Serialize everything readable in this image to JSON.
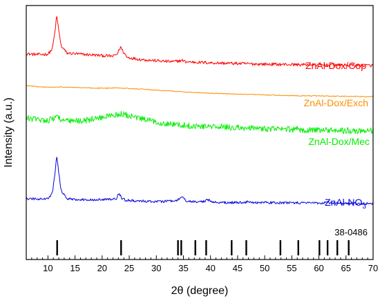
{
  "chart_data": {
    "type": "line",
    "xlabel": "2θ (degree)",
    "ylabel": "Intensity (a.u.)",
    "xlim": [
      6,
      70
    ],
    "x_ticks": [
      10,
      15,
      20,
      25,
      30,
      35,
      40,
      45,
      50,
      55,
      60,
      65,
      70
    ],
    "grid": false,
    "series": [
      {
        "name": "ZnAl-Dox/Cop",
        "label_main": "ZnAl-Dox/Cop",
        "color": "#ff0000",
        "noise": 2.2,
        "x": [
          6,
          8,
          10,
          10.8,
          11.3,
          11.6,
          11.9,
          12.4,
          13.5,
          16,
          18,
          20,
          22,
          22.8,
          23.4,
          23.9,
          24.6,
          27,
          30,
          33,
          34.8,
          35.4,
          40,
          45,
          50,
          55,
          60,
          65,
          70
        ],
        "y": [
          20,
          19,
          19.5,
          27,
          52,
          75,
          60,
          32,
          21,
          19.5,
          18.5,
          17.5,
          16.5,
          20,
          30,
          23,
          15,
          12,
          10,
          8.5,
          10.5,
          8.5,
          7,
          6,
          5,
          4.5,
          4,
          3.5,
          3
        ]
      },
      {
        "name": "ZnAl-Dox/Exch",
        "label_main": "ZnAl-Dox/Exch",
        "color": "#ff8c00",
        "noise": 0.6,
        "x": [
          6,
          8,
          10,
          12,
          15,
          18,
          21,
          23,
          25,
          28,
          32,
          36,
          40,
          45,
          50,
          55,
          60,
          65,
          70
        ],
        "y": [
          21,
          19.5,
          18.5,
          18.8,
          18.3,
          17.5,
          17.2,
          17.8,
          16.8,
          15.5,
          13.5,
          11.5,
          10,
          8.5,
          7.5,
          6.5,
          6,
          5.5,
          5
        ]
      },
      {
        "name": "ZnAl-Dox/Mec",
        "label_main": "ZnAl-Dox/Mec",
        "color": "#00ee00",
        "noise": 4.5,
        "x": [
          6,
          8,
          10,
          11,
          11.7,
          12.5,
          14,
          16,
          18,
          20,
          22,
          23.5,
          25,
          27,
          30,
          33,
          36,
          40,
          45,
          50,
          55,
          60,
          65,
          70
        ],
        "y": [
          22,
          20,
          19,
          21,
          26,
          19,
          17,
          18,
          20,
          23,
          26,
          28,
          25,
          21,
          16,
          13,
          11,
          9.5,
          8,
          6.5,
          5.5,
          4.5,
          4,
          3.5
        ]
      },
      {
        "name": "ZnAl-NO3",
        "label_main": "ZnAl-NO",
        "label_sub": "3",
        "color": "#0000dd",
        "noise": 1.8,
        "x": [
          6,
          8,
          10,
          10.8,
          11.3,
          11.6,
          11.9,
          12.4,
          13.5,
          16,
          20,
          22.6,
          23.1,
          23.6,
          24.3,
          27,
          31,
          33.8,
          34.7,
          35.5,
          37,
          38.8,
          39.4,
          40.3,
          42,
          46.5,
          47,
          48,
          55,
          60.8,
          61.5,
          62,
          65,
          70
        ],
        "y": [
          10,
          9.5,
          10,
          18,
          45,
          73,
          55,
          22,
          10,
          9,
          8.5,
          10,
          18,
          11,
          8,
          6.5,
          6,
          7,
          13,
          7,
          5.5,
          6,
          9,
          5.5,
          4.5,
          4.5,
          6.5,
          4.5,
          4,
          4,
          6,
          4,
          3.5,
          3
        ]
      }
    ],
    "reference": {
      "label": "38-0486",
      "color": "#000000",
      "positions": [
        11.7,
        23.5,
        34.0,
        34.6,
        37.2,
        39.2,
        43.9,
        46.6,
        52.9,
        56.2,
        60.1,
        61.6,
        63.4,
        65.5
      ]
    }
  }
}
